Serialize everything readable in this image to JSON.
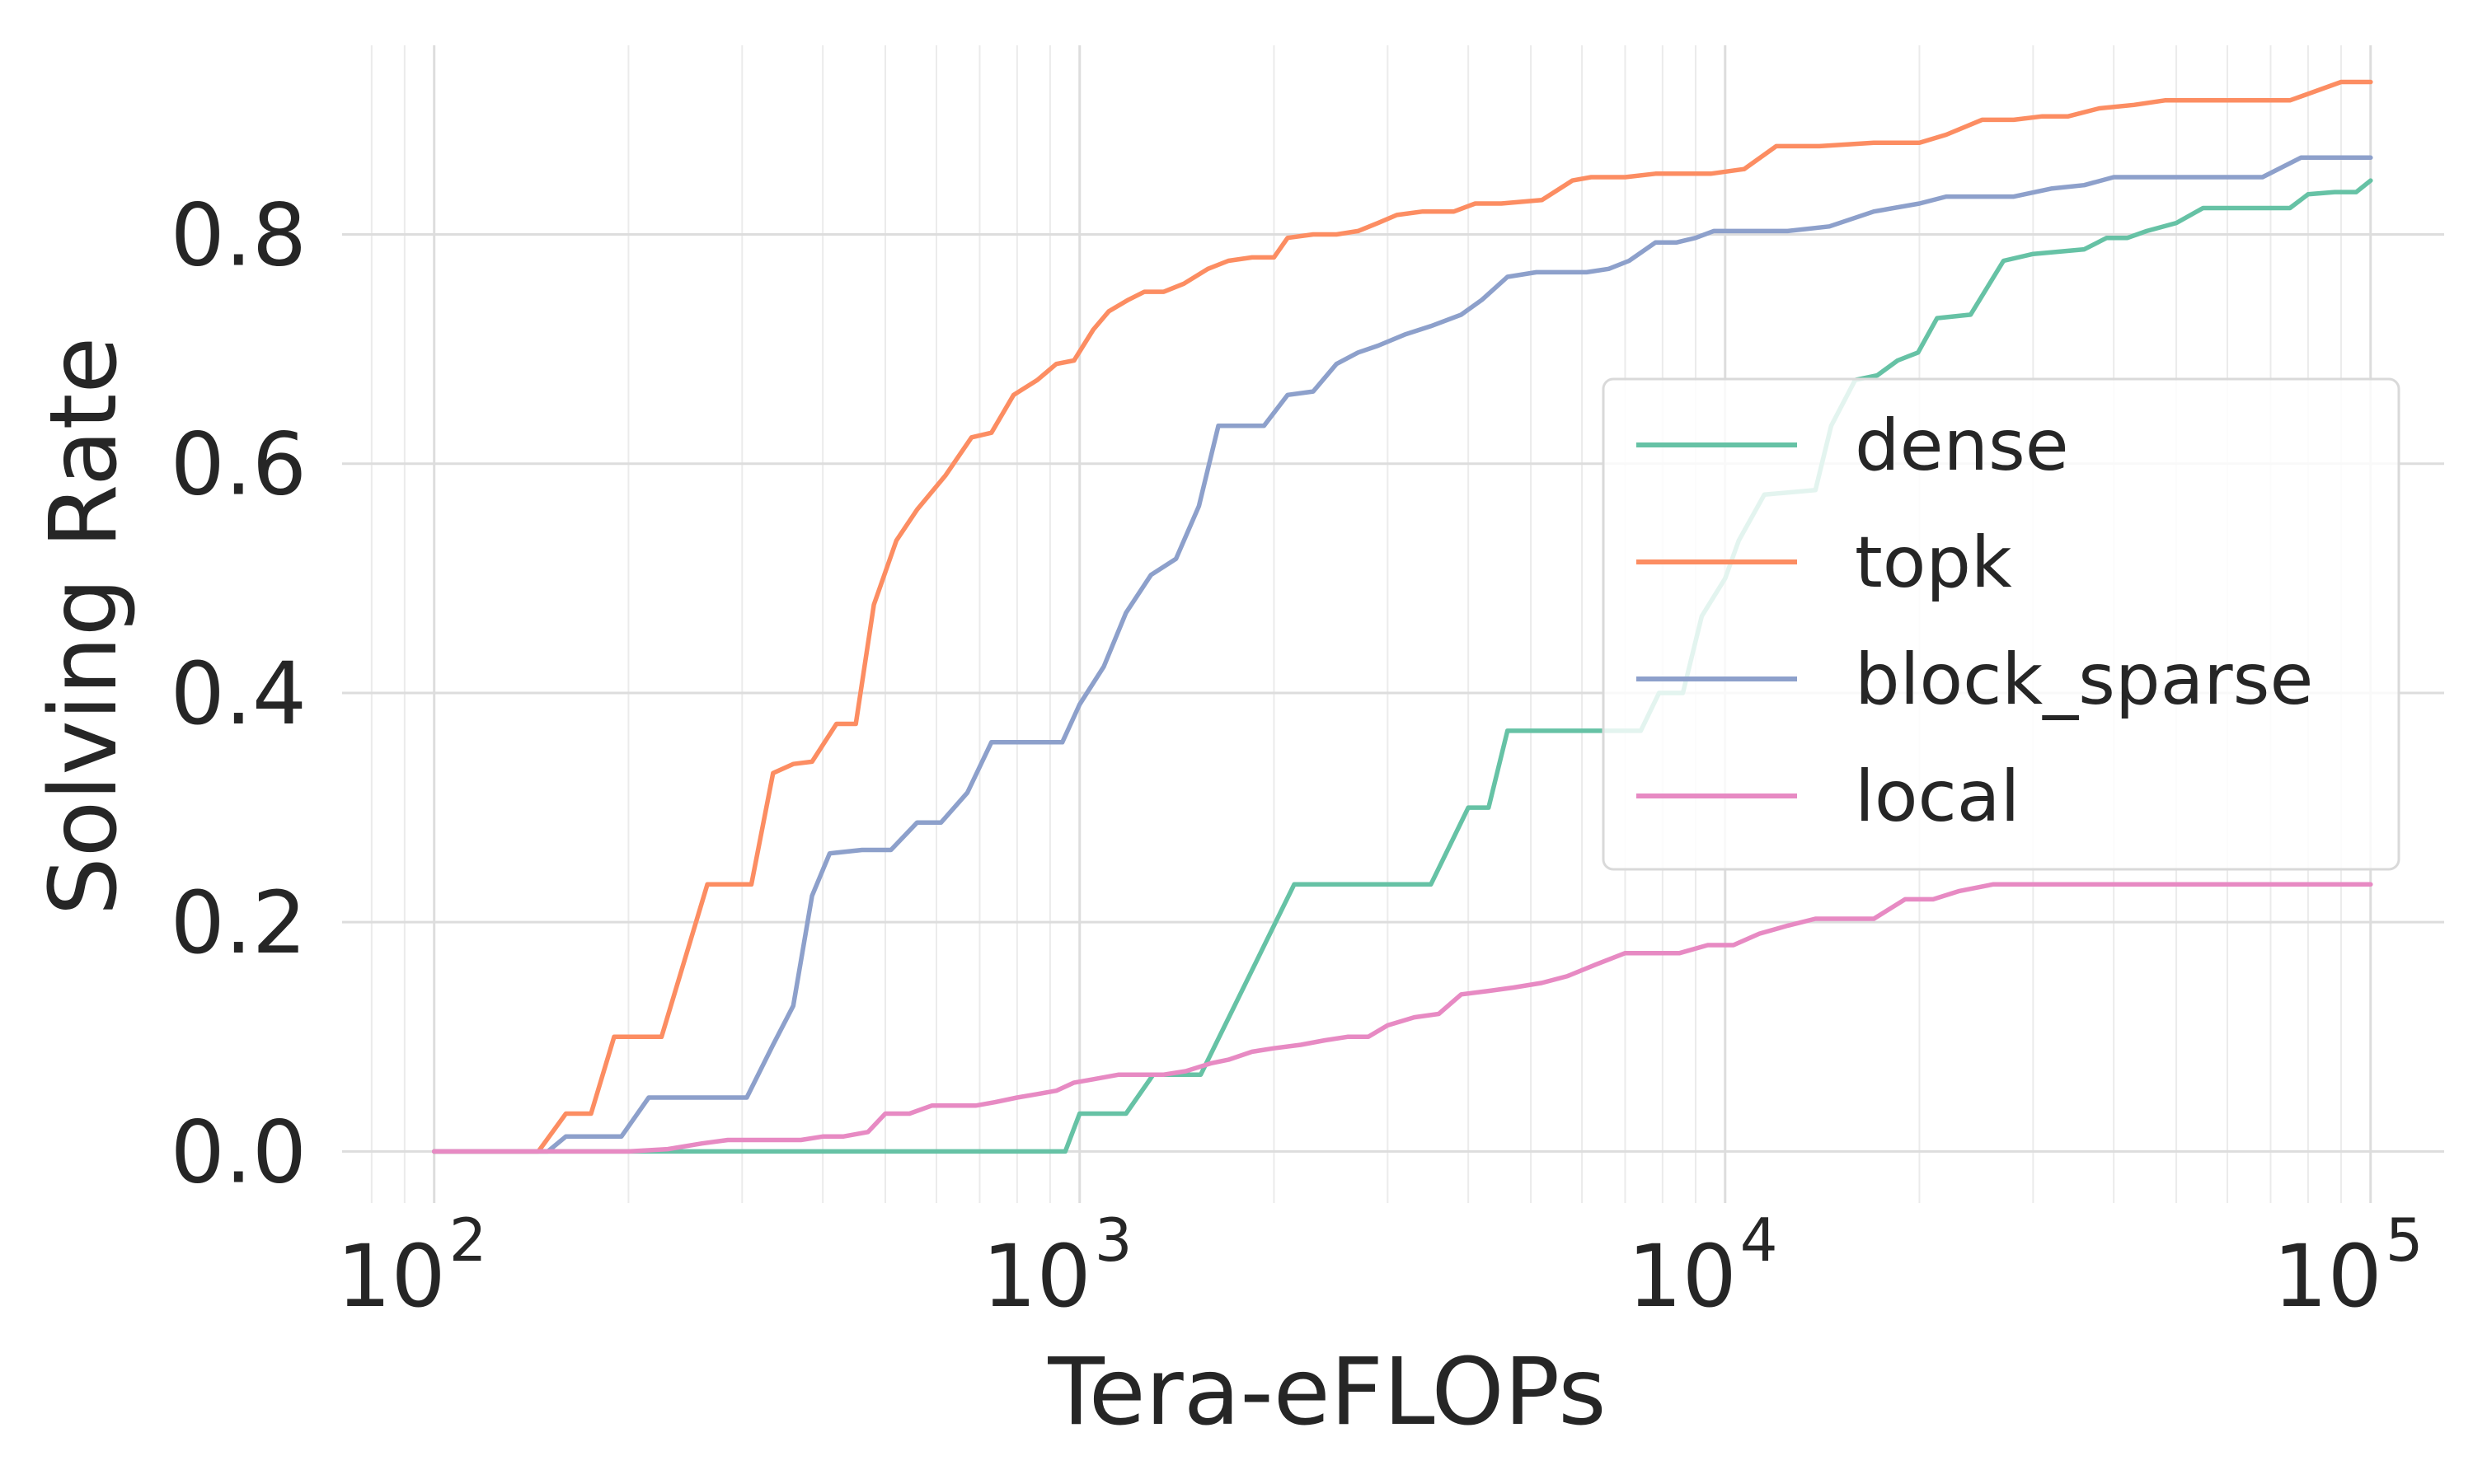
{
  "chart_data": {
    "type": "line",
    "xlabel": "Tera-eFLOPs",
    "ylabel": "Solving Rate",
    "xscale": "log",
    "xlim": [
      72,
      130000
    ],
    "ylim": [
      -0.045,
      0.965
    ],
    "x_ticks": [
      {
        "base": "10",
        "exp": "2",
        "value": 100
      },
      {
        "base": "10",
        "exp": "3",
        "value": 1000
      },
      {
        "base": "10",
        "exp": "4",
        "value": 10000
      },
      {
        "base": "10",
        "exp": "5",
        "value": 100000
      }
    ],
    "y_ticks": [
      {
        "label": "0.0",
        "value": 0.0
      },
      {
        "label": "0.2",
        "value": 0.2
      },
      {
        "label": "0.4",
        "value": 0.4
      },
      {
        "label": "0.6",
        "value": 0.6
      },
      {
        "label": "0.8",
        "value": 0.8
      }
    ],
    "grid": true,
    "legend_position": "center-right",
    "series": [
      {
        "name": "dense",
        "color": "#66c2a5",
        "points": [
          [
            100,
            0
          ],
          [
            150,
            0
          ],
          [
            300,
            0
          ],
          [
            600,
            0
          ],
          [
            950,
            0
          ],
          [
            1000,
            0.033
          ],
          [
            1180,
            0.033
          ],
          [
            1300,
            0.067
          ],
          [
            1540,
            0.067
          ],
          [
            2150,
            0.233
          ],
          [
            3300,
            0.233
          ],
          [
            3500,
            0.233
          ],
          [
            4000,
            0.3
          ],
          [
            4300,
            0.3
          ],
          [
            4600,
            0.367
          ],
          [
            7000,
            0.367
          ],
          [
            7400,
            0.367
          ],
          [
            7900,
            0.4
          ],
          [
            8600,
            0.4
          ],
          [
            9200,
            0.467
          ],
          [
            10000,
            0.5
          ],
          [
            10500,
            0.533
          ],
          [
            11500,
            0.573
          ],
          [
            13800,
            0.577
          ],
          [
            14600,
            0.633
          ],
          [
            15900,
            0.673
          ],
          [
            17200,
            0.677
          ],
          [
            18500,
            0.69
          ],
          [
            19900,
            0.697
          ],
          [
            21300,
            0.727
          ],
          [
            24000,
            0.73
          ],
          [
            27000,
            0.777
          ],
          [
            30000,
            0.783
          ],
          [
            36000,
            0.787
          ],
          [
            39000,
            0.797
          ],
          [
            42000,
            0.797
          ],
          [
            45000,
            0.803
          ],
          [
            50000,
            0.81
          ],
          [
            55000,
            0.823
          ],
          [
            60000,
            0.823
          ],
          [
            66000,
            0.823
          ],
          [
            75000,
            0.823
          ],
          [
            80000,
            0.835
          ],
          [
            88000,
            0.837
          ],
          [
            95000,
            0.837
          ],
          [
            100000,
            0.847
          ]
        ]
      },
      {
        "name": "topk",
        "color": "#fc8d62",
        "points": [
          [
            100,
            0
          ],
          [
            145,
            0
          ],
          [
            160,
            0.033
          ],
          [
            175,
            0.033
          ],
          [
            190,
            0.1
          ],
          [
            225,
            0.1
          ],
          [
            265,
            0.233
          ],
          [
            310,
            0.233
          ],
          [
            335,
            0.33
          ],
          [
            360,
            0.338
          ],
          [
            385,
            0.34
          ],
          [
            420,
            0.373
          ],
          [
            450,
            0.373
          ],
          [
            480,
            0.477
          ],
          [
            520,
            0.533
          ],
          [
            560,
            0.56
          ],
          [
            620,
            0.59
          ],
          [
            680,
            0.623
          ],
          [
            730,
            0.627
          ],
          [
            790,
            0.66
          ],
          [
            860,
            0.673
          ],
          [
            920,
            0.687
          ],
          [
            980,
            0.69
          ],
          [
            1050,
            0.717
          ],
          [
            1110,
            0.733
          ],
          [
            1190,
            0.743
          ],
          [
            1260,
            0.75
          ],
          [
            1350,
            0.75
          ],
          [
            1450,
            0.757
          ],
          [
            1580,
            0.77
          ],
          [
            1700,
            0.777
          ],
          [
            1850,
            0.78
          ],
          [
            2000,
            0.78
          ],
          [
            2100,
            0.797
          ],
          [
            2300,
            0.8
          ],
          [
            2500,
            0.8
          ],
          [
            2700,
            0.803
          ],
          [
            2900,
            0.81
          ],
          [
            3100,
            0.817
          ],
          [
            3400,
            0.82
          ],
          [
            3800,
            0.82
          ],
          [
            4100,
            0.827
          ],
          [
            4500,
            0.827
          ],
          [
            5200,
            0.83
          ],
          [
            5800,
            0.847
          ],
          [
            6200,
            0.85
          ],
          [
            7000,
            0.85
          ],
          [
            7800,
            0.853
          ],
          [
            8500,
            0.853
          ],
          [
            9500,
            0.853
          ],
          [
            10700,
            0.857
          ],
          [
            12000,
            0.877
          ],
          [
            14000,
            0.877
          ],
          [
            17000,
            0.88
          ],
          [
            20000,
            0.88
          ],
          [
            22000,
            0.887
          ],
          [
            25000,
            0.9
          ],
          [
            28000,
            0.9
          ],
          [
            31000,
            0.903
          ],
          [
            34000,
            0.903
          ],
          [
            38000,
            0.91
          ],
          [
            43000,
            0.913
          ],
          [
            48000,
            0.917
          ],
          [
            55000,
            0.917
          ],
          [
            65000,
            0.917
          ],
          [
            75000,
            0.917
          ],
          [
            90000,
            0.933
          ],
          [
            100000,
            0.933
          ]
        ]
      },
      {
        "name": "block_sparse",
        "color": "#8da0cb",
        "points": [
          [
            100,
            0
          ],
          [
            150,
            0
          ],
          [
            160,
            0.013
          ],
          [
            175,
            0.013
          ],
          [
            195,
            0.013
          ],
          [
            215,
            0.047
          ],
          [
            260,
            0.047
          ],
          [
            305,
            0.047
          ],
          [
            335,
            0.093
          ],
          [
            360,
            0.127
          ],
          [
            385,
            0.223
          ],
          [
            410,
            0.26
          ],
          [
            460,
            0.263
          ],
          [
            510,
            0.263
          ],
          [
            560,
            0.287
          ],
          [
            610,
            0.287
          ],
          [
            670,
            0.313
          ],
          [
            730,
            0.357
          ],
          [
            800,
            0.357
          ],
          [
            870,
            0.357
          ],
          [
            940,
            0.357
          ],
          [
            1000,
            0.39
          ],
          [
            1090,
            0.423
          ],
          [
            1180,
            0.47
          ],
          [
            1290,
            0.503
          ],
          [
            1410,
            0.517
          ],
          [
            1530,
            0.563
          ],
          [
            1640,
            0.633
          ],
          [
            1760,
            0.633
          ],
          [
            1930,
            0.633
          ],
          [
            2100,
            0.66
          ],
          [
            2300,
            0.663
          ],
          [
            2500,
            0.687
          ],
          [
            2700,
            0.697
          ],
          [
            2900,
            0.703
          ],
          [
            3200,
            0.713
          ],
          [
            3500,
            0.72
          ],
          [
            3900,
            0.73
          ],
          [
            4200,
            0.743
          ],
          [
            4600,
            0.763
          ],
          [
            5100,
            0.767
          ],
          [
            5600,
            0.767
          ],
          [
            6100,
            0.767
          ],
          [
            6600,
            0.77
          ],
          [
            7100,
            0.777
          ],
          [
            7800,
            0.793
          ],
          [
            8400,
            0.793
          ],
          [
            9000,
            0.797
          ],
          [
            9600,
            0.803
          ],
          [
            11000,
            0.803
          ],
          [
            12500,
            0.803
          ],
          [
            14500,
            0.807
          ],
          [
            17000,
            0.82
          ],
          [
            20000,
            0.827
          ],
          [
            22000,
            0.833
          ],
          [
            25000,
            0.833
          ],
          [
            28000,
            0.833
          ],
          [
            32000,
            0.84
          ],
          [
            36000,
            0.843
          ],
          [
            40000,
            0.85
          ],
          [
            45000,
            0.85
          ],
          [
            52000,
            0.85
          ],
          [
            60000,
            0.85
          ],
          [
            68000,
            0.85
          ],
          [
            78000,
            0.867
          ],
          [
            88000,
            0.867
          ],
          [
            100000,
            0.867
          ]
        ]
      },
      {
        "name": "local",
        "color": "#e78ac3",
        "points": [
          [
            100,
            0
          ],
          [
            150,
            0
          ],
          [
            200,
            0
          ],
          [
            230,
            0.002
          ],
          [
            260,
            0.007
          ],
          [
            285,
            0.01
          ],
          [
            310,
            0.01
          ],
          [
            340,
            0.01
          ],
          [
            370,
            0.01
          ],
          [
            400,
            0.013
          ],
          [
            430,
            0.013
          ],
          [
            470,
            0.017
          ],
          [
            500,
            0.033
          ],
          [
            545,
            0.033
          ],
          [
            590,
            0.04
          ],
          [
            640,
            0.04
          ],
          [
            690,
            0.04
          ],
          [
            740,
            0.043
          ],
          [
            800,
            0.047
          ],
          [
            860,
            0.05
          ],
          [
            920,
            0.053
          ],
          [
            980,
            0.06
          ],
          [
            1050,
            0.063
          ],
          [
            1150,
            0.067
          ],
          [
            1250,
            0.067
          ],
          [
            1350,
            0.067
          ],
          [
            1460,
            0.07
          ],
          [
            1600,
            0.077
          ],
          [
            1700,
            0.08
          ],
          [
            1850,
            0.087
          ],
          [
            2000,
            0.09
          ],
          [
            2200,
            0.093
          ],
          [
            2400,
            0.097
          ],
          [
            2600,
            0.1
          ],
          [
            2800,
            0.1
          ],
          [
            3000,
            0.11
          ],
          [
            3300,
            0.117
          ],
          [
            3600,
            0.12
          ],
          [
            3900,
            0.137
          ],
          [
            4300,
            0.14
          ],
          [
            4700,
            0.143
          ],
          [
            5200,
            0.147
          ],
          [
            5700,
            0.153
          ],
          [
            6300,
            0.163
          ],
          [
            7000,
            0.173
          ],
          [
            7700,
            0.173
          ],
          [
            8500,
            0.173
          ],
          [
            9400,
            0.18
          ],
          [
            10300,
            0.18
          ],
          [
            11300,
            0.19
          ],
          [
            12500,
            0.197
          ],
          [
            13800,
            0.203
          ],
          [
            15200,
            0.203
          ],
          [
            17000,
            0.203
          ],
          [
            19000,
            0.22
          ],
          [
            21000,
            0.22
          ],
          [
            23000,
            0.227
          ],
          [
            26000,
            0.233
          ],
          [
            30000,
            0.233
          ],
          [
            40000,
            0.233
          ],
          [
            60000,
            0.233
          ],
          [
            100000,
            0.233
          ]
        ]
      }
    ]
  }
}
